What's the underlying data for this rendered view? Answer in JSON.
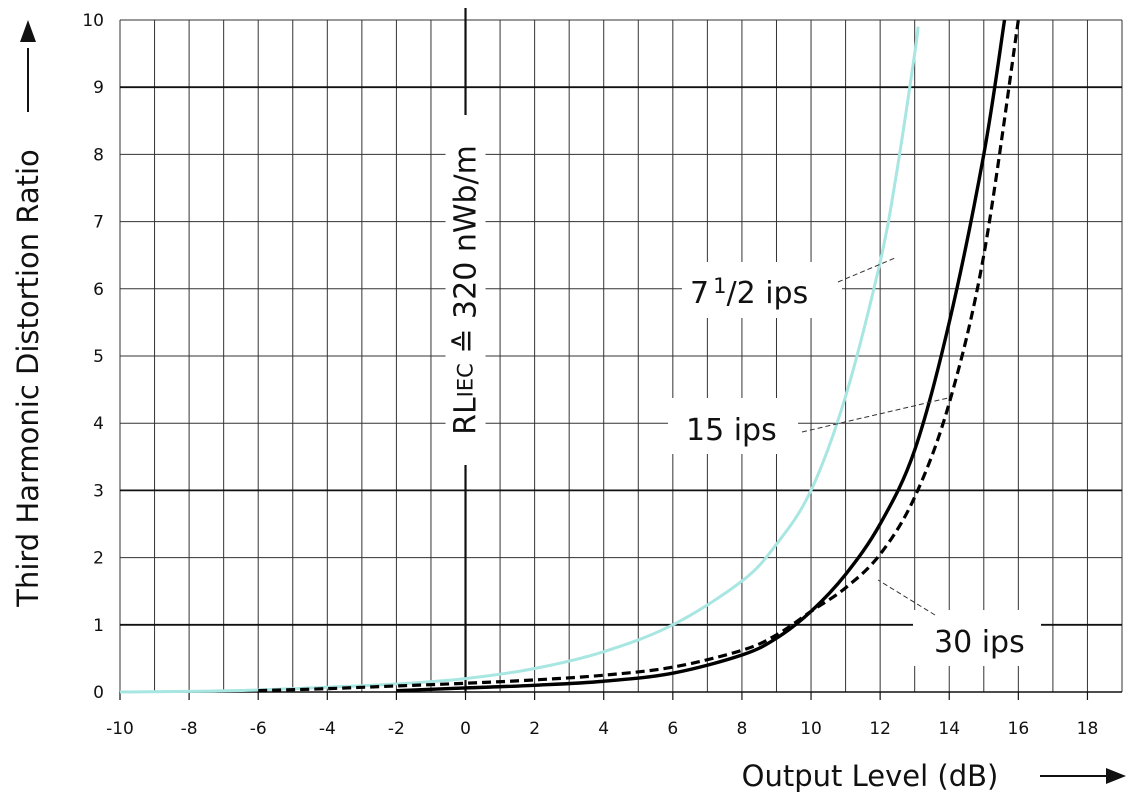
{
  "chart_data": {
    "type": "line",
    "xlabel": "Output Level (dB)",
    "ylabel": "Third Harmonic Distortion Ratio",
    "xlim": [
      -10,
      19
    ],
    "ylim": [
      0,
      10
    ],
    "x_ticks": [
      -10,
      -8,
      -6,
      -4,
      -2,
      0,
      2,
      4,
      6,
      8,
      10,
      12,
      14,
      16,
      18
    ],
    "y_ticks": [
      0,
      1,
      2,
      3,
      4,
      5,
      6,
      7,
      8,
      9,
      10
    ],
    "major_y_lines": [
      1,
      3,
      9
    ],
    "grid": true,
    "reference_line": {
      "x": 0,
      "label_main": "RL",
      "label_sub": "IEC",
      "label_rest": " ≙ 320 nWb/m"
    },
    "series": [
      {
        "name": "7 1/2 ips",
        "label_main": "7",
        "label_fraction_num": "1",
        "label_fraction_rest": "/2 ips",
        "color": "#a8e6e2",
        "style": "solid",
        "x": [
          -10,
          -8,
          -6,
          -4,
          -2,
          0,
          2,
          4,
          6,
          8,
          9,
          10,
          11,
          12,
          12.5,
          13,
          13.1
        ],
        "y": [
          0.0,
          0.01,
          0.03,
          0.07,
          0.12,
          0.2,
          0.35,
          0.6,
          1.0,
          1.65,
          2.2,
          3.0,
          4.4,
          6.4,
          7.8,
          9.5,
          9.9
        ]
      },
      {
        "name": "15 ips",
        "label": "15 ips",
        "color": "#000000",
        "style": "solid",
        "x": [
          -2,
          0,
          2,
          4,
          6,
          8,
          9,
          10,
          11,
          12,
          13,
          14,
          15,
          15.6
        ],
        "y": [
          0.02,
          0.06,
          0.1,
          0.16,
          0.28,
          0.55,
          0.8,
          1.2,
          1.75,
          2.5,
          3.6,
          5.5,
          8.0,
          10.0
        ]
      },
      {
        "name": "30 ips",
        "label": "30 ips",
        "color": "#000000",
        "style": "dashed",
        "x": [
          -6,
          -4,
          -2,
          0,
          2,
          4,
          6,
          8,
          9,
          10,
          11,
          12,
          13,
          14,
          15,
          16
        ],
        "y": [
          0.02,
          0.05,
          0.09,
          0.13,
          0.18,
          0.25,
          0.37,
          0.62,
          0.85,
          1.2,
          1.55,
          2.05,
          2.9,
          4.3,
          6.5,
          10.0
        ]
      }
    ]
  }
}
